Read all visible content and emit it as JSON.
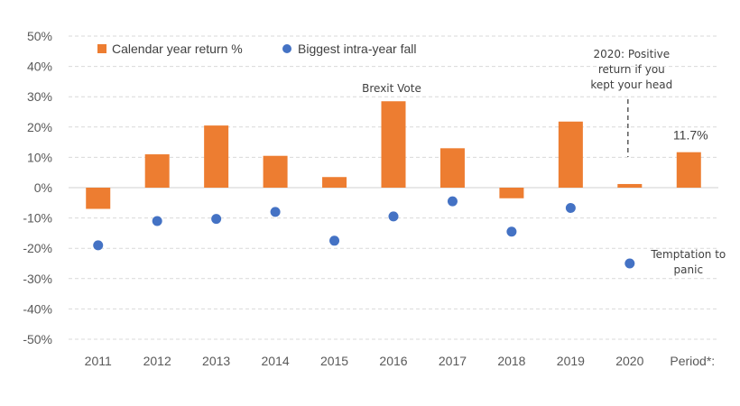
{
  "chart_data": {
    "type": "bar",
    "categories": [
      "2011",
      "2012",
      "2013",
      "2014",
      "2015",
      "2016",
      "2017",
      "2018",
      "2019",
      "2020",
      "Period*:"
    ],
    "series": [
      {
        "name": "Calendar year return %",
        "kind": "bar",
        "color": "#ED7D31",
        "values": [
          -7,
          11,
          20.5,
          10.5,
          3.5,
          28.5,
          13,
          -3.5,
          21.8,
          1.2,
          11.7
        ]
      },
      {
        "name": "Biggest intra-year fall",
        "kind": "scatter",
        "color": "#4472C4",
        "values": [
          -19,
          -11,
          -10.3,
          -8,
          -17.5,
          -9.5,
          -4.5,
          -14.5,
          -6.7,
          -25,
          null
        ]
      }
    ],
    "ylim": [
      -50,
      50
    ],
    "yticks": [
      50,
      40,
      30,
      20,
      10,
      0,
      -10,
      -20,
      -30,
      -40,
      -50
    ],
    "ytick_labels": [
      "50%",
      "40%",
      "30%",
      "20%",
      "10%",
      "0%",
      "-10%",
      "-20%",
      "-30%",
      "-40%",
      "-50%"
    ],
    "grid": true,
    "legend": "top-left",
    "data_labels": [
      {
        "category": "Period*:",
        "text": "11.7%"
      }
    ],
    "annotations": [
      {
        "category": "2016",
        "lines": [
          "Brexit Vote"
        ]
      },
      {
        "category": "2020",
        "lines": [
          "2020: Positive",
          "return  if  you",
          "kept your head"
        ]
      },
      {
        "category": "2020",
        "lines": [
          "Temptation to",
          "panic"
        ]
      }
    ]
  }
}
